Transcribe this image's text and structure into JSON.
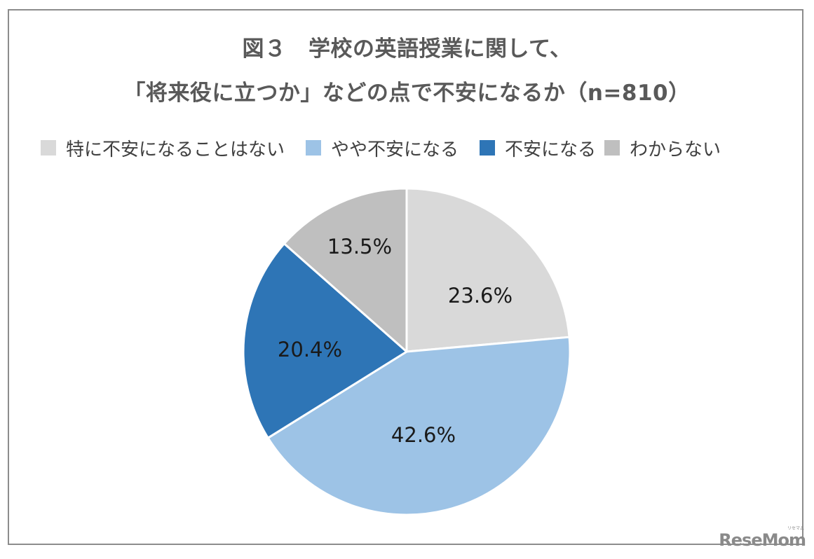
{
  "title": {
    "line1": "図３　学校の英語授業に関して、",
    "line2": "「将来役に立つか」などの点で不安になるか（n=810）"
  },
  "legend": [
    {
      "label": "特に不安になることはない",
      "color": "#d9d9d9"
    },
    {
      "label": "やや不安になる",
      "color": "#9dc3e6"
    },
    {
      "label": "不安になる",
      "color": "#2e75b6"
    },
    {
      "label": "わからない",
      "color": "#bfbfbf"
    }
  ],
  "slices": [
    {
      "label": "特に不安になることはない",
      "value_label": "23.6%"
    },
    {
      "label": "やや不安になる",
      "value_label": "42.6%"
    },
    {
      "label": "不安になる",
      "value_label": "20.4%"
    },
    {
      "label": "わからない",
      "value_label": "13.5%"
    }
  ],
  "watermark": {
    "text": "ReseMom",
    "sub": "リセマム"
  },
  "chart_data": {
    "type": "pie",
    "title": "図３　学校の英語授業に関して、「将来役に立つか」などの点で不安になるか（n=810）",
    "categories": [
      "特に不安になることはない",
      "やや不安になる",
      "不安になる",
      "わからない"
    ],
    "values": [
      23.6,
      42.6,
      20.4,
      13.5
    ],
    "unit": "%",
    "colors": [
      "#d9d9d9",
      "#9dc3e6",
      "#2e75b6",
      "#bfbfbf"
    ],
    "start_angle_deg": 0,
    "direction": "clockwise",
    "n": 810,
    "legend_position": "top"
  }
}
